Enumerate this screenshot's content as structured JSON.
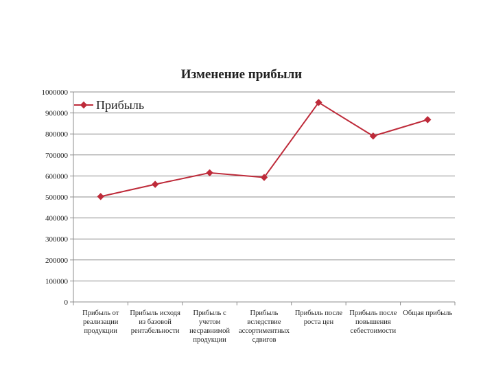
{
  "chart_data": {
    "type": "line",
    "title": "Изменение прибыли",
    "xlabel": "",
    "ylabel": "",
    "ylim": [
      0,
      1000000
    ],
    "yticks": [
      0,
      100000,
      200000,
      300000,
      400000,
      500000,
      600000,
      700000,
      800000,
      900000,
      1000000
    ],
    "ytick_labels": [
      "0",
      "100000",
      "200000",
      "300000",
      "400000",
      "500000",
      "600000",
      "700000",
      "800000",
      "900000",
      "1000000"
    ],
    "grid": true,
    "legend": "top-left",
    "categories": [
      [
        "Прибыль от",
        "реализации",
        "продукции"
      ],
      [
        "Прибыль исходя",
        "из базовой",
        "рентабельности"
      ],
      [
        "Прибыль с",
        "учетом",
        "несравнимой",
        "продукции"
      ],
      [
        "Прибыль",
        "вследствие",
        "ассортиментных",
        "сдвигов"
      ],
      [
        "Прибыль после",
        "роста цен"
      ],
      [
        "Прибыль после",
        "повышения",
        "себестоимости"
      ],
      [
        "Общая прибыль"
      ]
    ],
    "series": [
      {
        "name": "Прибыль",
        "color": "#be2b3a",
        "marker": "diamond",
        "values": [
          502000,
          560000,
          615000,
          593000,
          950000,
          790000,
          868000
        ]
      }
    ]
  }
}
